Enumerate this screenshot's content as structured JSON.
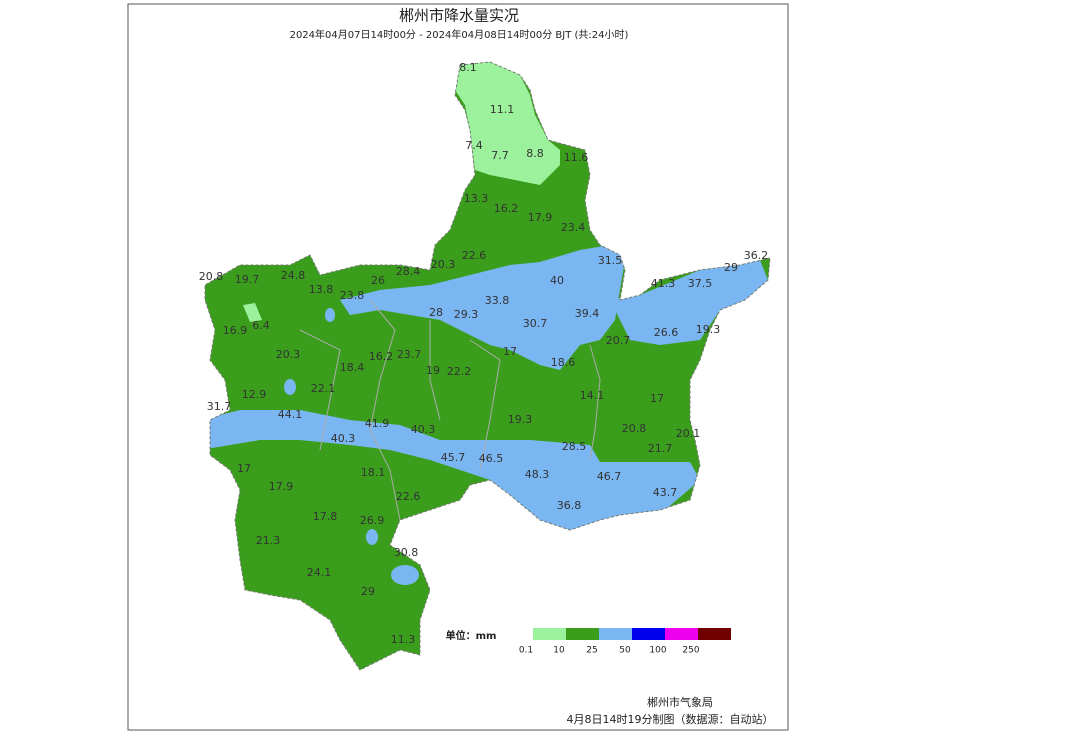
{
  "header": {
    "title": "郴州市降水量实况",
    "subtitle": "2024年04月07日14时00分 - 2024年04月08日14时00分 BJT (共:24小时)"
  },
  "map": {
    "stations": [
      8.1,
      11.1,
      7.4,
      7.7,
      8.8,
      11.6,
      13.3,
      16.2,
      17.9,
      23.4,
      22.6,
      20.3,
      28.4,
      26,
      23.8,
      13.8,
      24.8,
      19.7,
      20.8,
      31.5,
      36.2,
      29,
      41.3,
      37.5,
      40,
      33.8,
      29.3,
      28,
      30.7,
      39.4,
      16.9,
      6.4,
      26.6,
      19.3,
      20.7,
      17,
      18.6,
      20.3,
      16.2,
      23.7,
      18.4,
      19,
      22.2,
      22.1,
      14.1,
      17,
      12.9,
      31.7,
      44.1,
      41.9,
      40.3,
      19.3,
      40.3,
      20.8,
      20.1,
      28.5,
      21.7,
      45.7,
      46.5,
      18.1,
      48.3,
      46.7,
      17,
      17.9,
      22.6,
      43.7,
      36.8,
      17.8,
      26.9,
      21.3,
      30.8,
      24.1,
      29,
      11.3
    ]
  },
  "legend": {
    "unit_label": "单位：mm",
    "ticks": [
      0.1,
      10,
      25,
      50,
      100,
      250
    ],
    "colors": [
      "#9cf29c",
      "#3a9e1c",
      "#7ab6f2",
      "#0000ee",
      "#ee00ee",
      "#700000"
    ]
  },
  "footer": {
    "agency": "郴州市气象局",
    "note": "4月8日14时19分制图（数据源：自动站）"
  }
}
